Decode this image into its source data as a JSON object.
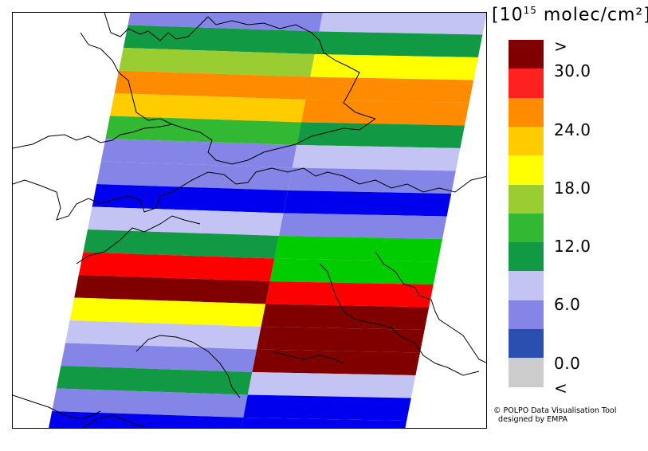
{
  "legend": {
    "title_prefix": "[10",
    "title_exponent": "15",
    "title_suffix": " molec/cm²]",
    "colors": [
      "#800000",
      "#ff2020",
      "#ff8c00",
      "#ffcc00",
      "#ffff00",
      "#9acd32",
      "#33b833",
      "#119944",
      "#c4c4f4",
      "#8585e8",
      "#2a4fb0",
      "#cccccc"
    ],
    "labels": [
      ">",
      "30.0",
      "24.0",
      "18.0",
      "12.0",
      "6.0",
      "0.0",
      "<"
    ]
  },
  "credit": "© POLPO Data Visualisation Tool\n  designed by EMPA",
  "map": {
    "swath_rows": [
      {
        "left_color": "#8585e8",
        "right_color": "#c4c4f4"
      },
      {
        "left_color": "#119944",
        "right_color": "#119944"
      },
      {
        "left_color": "#9acd32",
        "right_color": "#ffff00"
      },
      {
        "left_color": "#ff8c00",
        "right_color": "#ff8c00"
      },
      {
        "left_color": "#ffcc00",
        "right_color": "#ff8c00"
      },
      {
        "left_color": "#33b833",
        "right_color": "#119944"
      },
      {
        "left_color": "#8585e8",
        "right_color": "#c4c4f4"
      },
      {
        "left_color": "#8585e8",
        "right_color": "#8585e8"
      },
      {
        "left_color": "#0000ee",
        "right_color": "#0000ee"
      },
      {
        "left_color": "#c4c4f4",
        "right_color": "#8585e8"
      },
      {
        "left_color": "#119944",
        "right_color": "#00cc00"
      },
      {
        "left_color": "#ff0000",
        "right_color": "#00cc00"
      },
      {
        "left_color": "#800000",
        "right_color": "#ff0000"
      },
      {
        "left_color": "#ffff00",
        "right_color": "#800000"
      },
      {
        "left_color": "#c4c4f4",
        "right_color": "#800000"
      },
      {
        "left_color": "#8585e8",
        "right_color": "#800000"
      },
      {
        "left_color": "#119944",
        "right_color": "#c4c4f4"
      },
      {
        "left_color": "#8585e8",
        "right_color": "#0000ee"
      },
      {
        "left_color": "#0000ee",
        "right_color": "#0000ee"
      }
    ]
  }
}
